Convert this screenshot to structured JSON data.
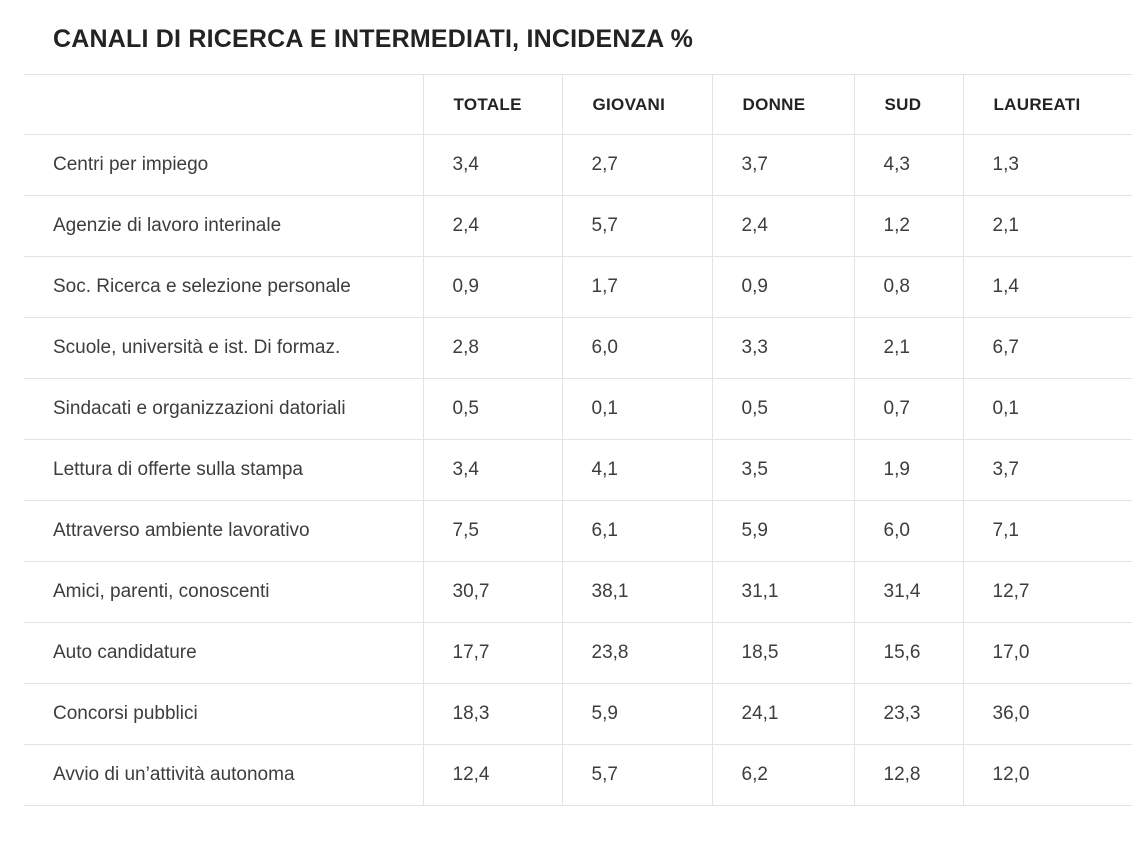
{
  "title": "CANALI DI RICERCA E INTERMEDIATI, INCIDENZA %",
  "table": {
    "columns": [
      "",
      "TOTALE",
      "GIOVANI",
      "DONNE",
      "SUD",
      "LAUREATI"
    ],
    "rows": [
      {
        "label": "Centri per impiego",
        "values": [
          "3,4",
          "2,7",
          "3,7",
          "4,3",
          "1,3"
        ]
      },
      {
        "label": "Agenzie di lavoro interinale",
        "values": [
          "2,4",
          "5,7",
          "2,4",
          "1,2",
          "2,1"
        ]
      },
      {
        "label": "Soc. Ricerca e selezione personale",
        "values": [
          "0,9",
          "1,7",
          "0,9",
          "0,8",
          "1,4"
        ]
      },
      {
        "label": "Scuole, università e ist. Di formaz.",
        "values": [
          "2,8",
          "6,0",
          "3,3",
          "2,1",
          "6,7"
        ]
      },
      {
        "label": "Sindacati e organizzazioni datoriali",
        "values": [
          "0,5",
          "0,1",
          "0,5",
          "0,7",
          "0,1"
        ]
      },
      {
        "label": "Lettura di offerte sulla stampa",
        "values": [
          "3,4",
          "4,1",
          "3,5",
          "1,9",
          "3,7"
        ]
      },
      {
        "label": "Attraverso ambiente lavorativo",
        "values": [
          "7,5",
          "6,1",
          "5,9",
          "6,0",
          "7,1"
        ]
      },
      {
        "label": "Amici, parenti, conoscenti",
        "values": [
          "30,7",
          "38,1",
          "31,1",
          "31,4",
          "12,7"
        ]
      },
      {
        "label": "Auto candidature",
        "values": [
          "17,7",
          "23,8",
          "18,5",
          "15,6",
          "17,0"
        ]
      },
      {
        "label": "Concorsi pubblici",
        "values": [
          "18,3",
          "5,9",
          "24,1",
          "23,3",
          "36,0"
        ]
      },
      {
        "label": "Avvio di un’attività autonoma",
        "values": [
          "12,4",
          "5,7",
          "6,2",
          "12,8",
          "12,0"
        ]
      }
    ]
  },
  "colors": {
    "background": "#ffffff",
    "title_text": "#232323",
    "header_text": "#232323",
    "body_text": "#3d3d3d",
    "border": "#e3e3e3"
  },
  "chart_data": {
    "type": "table",
    "title": "CANALI DI RICERCA E INTERMEDIATI, INCIDENZA %",
    "value_unit": "percent_incidence",
    "columns": [
      "TOTALE",
      "GIOVANI",
      "DONNE",
      "SUD",
      "LAUREATI"
    ],
    "rows": [
      {
        "label": "Centri per impiego",
        "values": [
          3.4,
          2.7,
          3.7,
          4.3,
          1.3
        ]
      },
      {
        "label": "Agenzie di lavoro interinale",
        "values": [
          2.4,
          5.7,
          2.4,
          1.2,
          2.1
        ]
      },
      {
        "label": "Soc. Ricerca e selezione personale",
        "values": [
          0.9,
          1.7,
          0.9,
          0.8,
          1.4
        ]
      },
      {
        "label": "Scuole, università e ist. Di formaz.",
        "values": [
          2.8,
          6.0,
          3.3,
          2.1,
          6.7
        ]
      },
      {
        "label": "Sindacati e organizzazioni datoriali",
        "values": [
          0.5,
          0.1,
          0.5,
          0.7,
          0.1
        ]
      },
      {
        "label": "Lettura di offerte sulla stampa",
        "values": [
          3.4,
          4.1,
          3.5,
          1.9,
          3.7
        ]
      },
      {
        "label": "Attraverso ambiente lavorativo",
        "values": [
          7.5,
          6.1,
          5.9,
          6.0,
          7.1
        ]
      },
      {
        "label": "Amici, parenti, conoscenti",
        "values": [
          30.7,
          38.1,
          31.1,
          31.4,
          12.7
        ]
      },
      {
        "label": "Auto candidature",
        "values": [
          17.7,
          23.8,
          18.5,
          15.6,
          17.0
        ]
      },
      {
        "label": "Concorsi pubblici",
        "values": [
          18.3,
          5.9,
          24.1,
          23.3,
          36.0
        ]
      },
      {
        "label": "Avvio di un’attività autonoma",
        "values": [
          12.4,
          5.7,
          6.2,
          12.8,
          12.0
        ]
      }
    ]
  }
}
